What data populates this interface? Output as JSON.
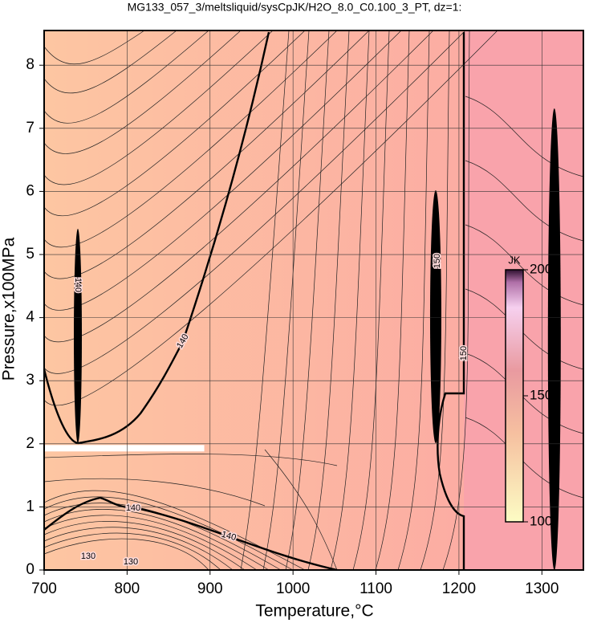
{
  "chart_data": {
    "type": "contour",
    "title": "MG133_057_3/meltsliquid/sysCpJK/H2O_8.0_C0.100_3_PT, dz=1:",
    "x_label": "Temperature,°C",
    "y_label": "Pressure,x100MPa",
    "xlim": [
      700,
      1350
    ],
    "ylim": [
      0,
      8.55
    ],
    "xticks": [
      700,
      800,
      900,
      1000,
      1100,
      1200,
      1300
    ],
    "yticks": [
      0,
      1,
      2,
      3,
      4,
      5,
      6,
      7,
      8
    ],
    "grid": true,
    "contour_labels": [
      140,
      140,
      150,
      150,
      140,
      140,
      130,
      130
    ],
    "colorbar": {
      "label": "JK",
      "lim": [
        100,
        200
      ],
      "ticks": [
        100,
        150,
        200
      ]
    }
  }
}
